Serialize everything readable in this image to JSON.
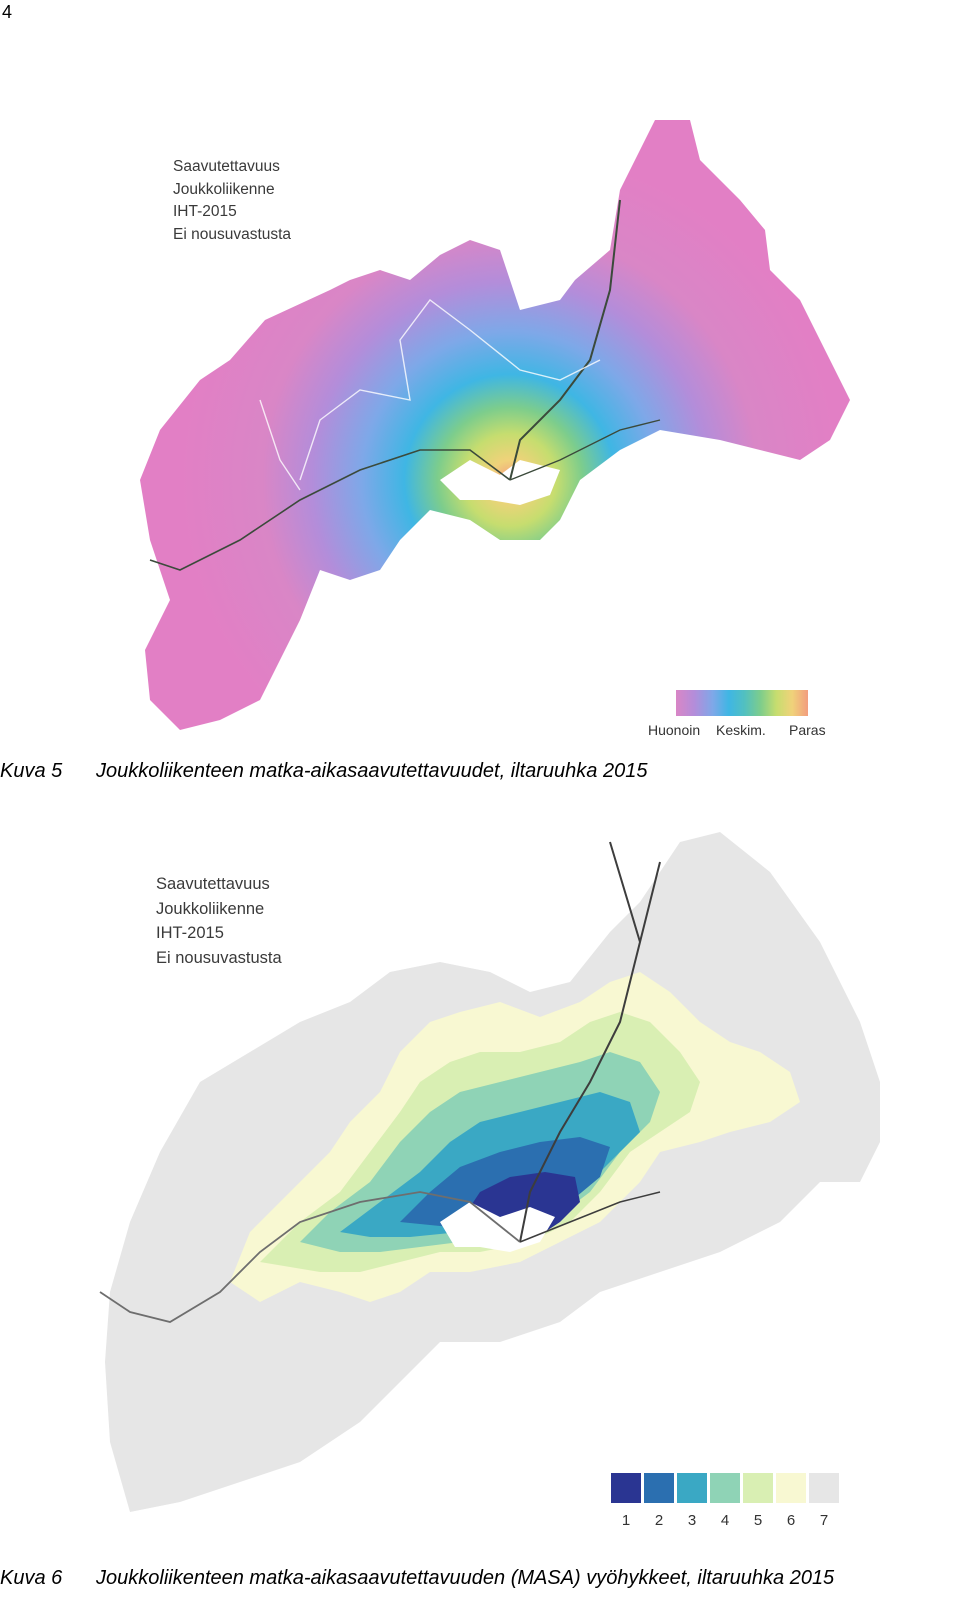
{
  "page_number": "4",
  "figure1": {
    "legend_lines": [
      "Saavutettavuus",
      "Joukkoliikenne",
      "IHT-2015",
      "Ei nousuvastusta"
    ],
    "scale_labels": {
      "low": "Huonoin",
      "mid": "Keskim.",
      "high": "Paras"
    },
    "scale_colors": [
      "#d986c6",
      "#b38dda",
      "#7ea8e8",
      "#3fb6e4",
      "#52c0c0",
      "#7dcd8c",
      "#c6dd6f",
      "#f0d27a",
      "#f29d7e"
    ],
    "caption_label": "Kuva 5",
    "caption_text": "Joukkoliikenteen matka-aikasaavutettavuudet, iltaruuhka 2015"
  },
  "figure2": {
    "legend_lines": [
      "Saavutettavuus",
      "Joukkoliikenne",
      "IHT-2015",
      "Ei nousuvastusta"
    ],
    "zones": [
      {
        "label": "1",
        "color": "#2a3592"
      },
      {
        "label": "2",
        "color": "#2b6fb0"
      },
      {
        "label": "3",
        "color": "#3aa8c4"
      },
      {
        "label": "4",
        "color": "#8fd3b6"
      },
      {
        "label": "5",
        "color": "#d9efb3"
      },
      {
        "label": "6",
        "color": "#f8f8d2"
      },
      {
        "label": "7",
        "color": "#e6e6e6"
      }
    ],
    "caption_label": "Kuva 6",
    "caption_text": "Joukkoliikenteen matka-aikasaavutettavuuden (MASA) vyöhykkeet, iltaruuhka 2015"
  }
}
